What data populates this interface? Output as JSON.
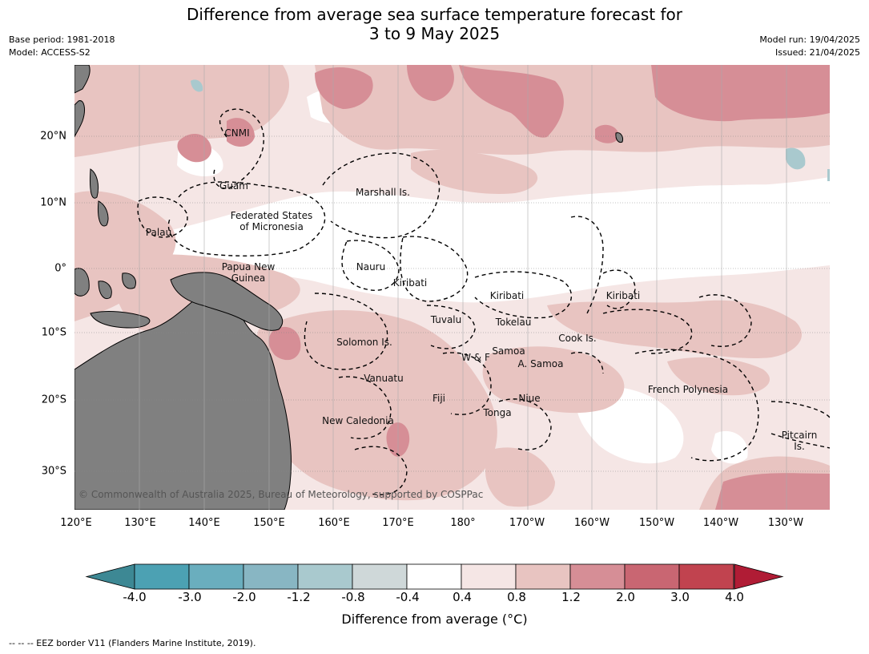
{
  "title_line1": "Difference from average sea surface temperature forecast for",
  "title_line2": "3 to 9 May 2025",
  "base_period": "Base period: 1981-2018",
  "model": "Model: ACCESS-S2",
  "model_run": "Model run: 19/04/2025",
  "issued": "Issued: 21/04/2025",
  "copyright": "© Commonwealth of Australia 2025, Bureau of Meteorology, supported by COSPPac",
  "lon_labels": [
    "120°E",
    "130°E",
    "140°E",
    "150°E",
    "160°E",
    "170°E",
    "180°",
    "170°W",
    "160°W",
    "150°W",
    "140°W",
    "130°W"
  ],
  "lat_labels": [
    "20°N",
    "10°N",
    "0°",
    "10°S",
    "20°S",
    "30°S"
  ],
  "regions": {
    "cnmi": "CNMI",
    "guam": "Guam",
    "marshall": "Marshall Is.",
    "fsm1": "Federated States",
    "fsm2": "of Micronesia",
    "palau": "Palau",
    "png1": "Papua New",
    "png2": "Guinea",
    "nauru": "Nauru",
    "kiribati_w": "Kiribati",
    "kiribati_c": "Kiribati",
    "kiribati_e": "Kiribati",
    "tuvalu": "Tuvalu",
    "tokelau": "Tokelau",
    "cook": "Cook Is.",
    "solomon": "Solomon Is.",
    "wf": "W & F",
    "samoa": "Samoa",
    "asamoa": "A. Samoa",
    "vanuatu": "Vanuatu",
    "fiji": "Fiji",
    "niue": "Niue",
    "tonga": "Tonga",
    "frpoly": "French Polynesia",
    "newcal": "New Caledonia",
    "pitcairn1": "Pitcairn",
    "pitcairn2": "Is."
  },
  "colorbar": {
    "labels": [
      "-4.0",
      "-3.0",
      "-2.0",
      "-1.2",
      "-0.8",
      "-0.4",
      "0.4",
      "0.8",
      "1.2",
      "2.0",
      "3.0",
      "4.0"
    ],
    "colors": [
      "#3d8894",
      "#4ca1b3",
      "#6aaebe",
      "#88b6c3",
      "#a9c9ce",
      "#cfd8d9",
      "#ffffff",
      "#f5e6e5",
      "#e8c4c1",
      "#d68e96",
      "#c96672",
      "#c1434f",
      "#b01c35"
    ],
    "title": "Difference from average (°C)"
  },
  "footnote": "--  --  -- EEZ border V11 (Flanders Marine Institute, 2019)."
}
